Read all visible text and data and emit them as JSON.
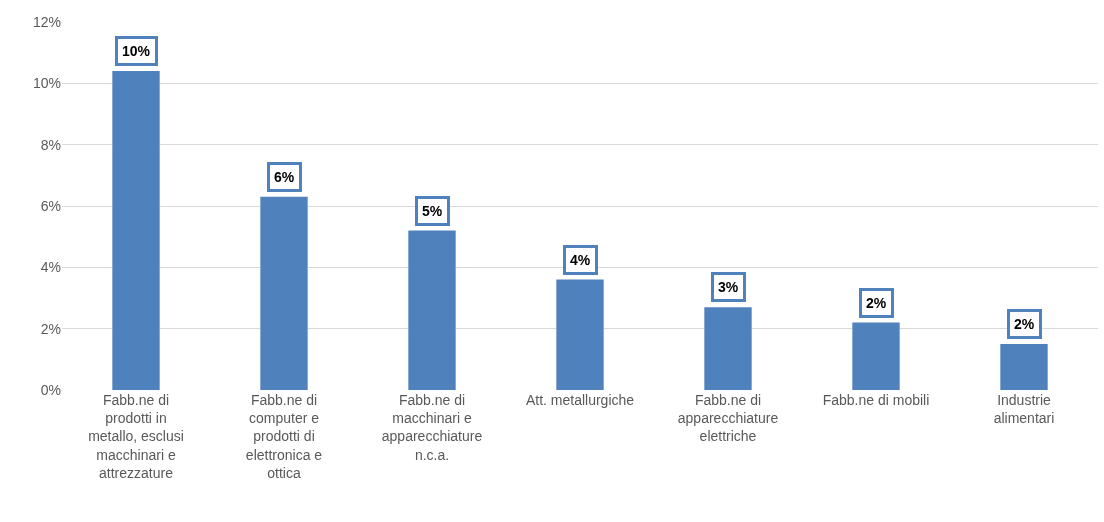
{
  "chart_data": {
    "type": "bar",
    "categories": [
      "Fabb.ne di prodotti in metallo, esclusi macchinari e attrezzature",
      "Fabb.ne di computer e prodotti di elettronica e ottica",
      "Fabb.ne di macchinari e apparecchiature n.c.a.",
      "Att. metallurgiche",
      "Fabb.ne di apparecchiature elettriche",
      "Fabb.ne di mobili",
      "Industrie alimentari"
    ],
    "values": [
      10.4,
      6.3,
      5.2,
      3.6,
      2.7,
      2.2,
      1.5
    ],
    "value_labels": [
      "10%",
      "6%",
      "5%",
      "4%",
      "3%",
      "2%",
      "2%"
    ],
    "color": "#4f81bd",
    "ylim": [
      0,
      12
    ],
    "yticks": [
      {
        "value": 0,
        "label": "0%"
      },
      {
        "value": 2,
        "label": "2%"
      },
      {
        "value": 4,
        "label": "4%"
      },
      {
        "value": 6,
        "label": "6%"
      },
      {
        "value": 8,
        "label": "8%"
      },
      {
        "value": 10,
        "label": "10%"
      },
      {
        "value": 12,
        "label": "12%"
      }
    ],
    "grid": "y"
  }
}
